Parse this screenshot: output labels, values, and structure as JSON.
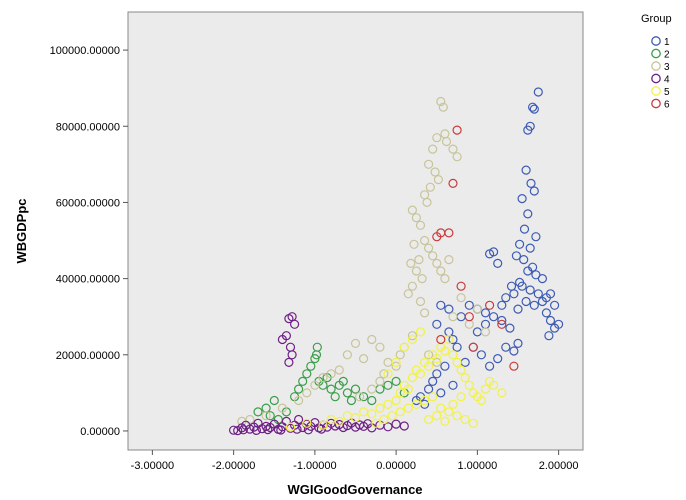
{
  "chart_data": {
    "type": "scatter",
    "xlabel": "WGIGoodGovernance",
    "ylabel": "WBGDPpc",
    "xlim": [
      -3.3,
      2.3
    ],
    "ylim": [
      -5000,
      110000
    ],
    "x_ticks": [
      {
        "value": -3,
        "label": "-3.00000"
      },
      {
        "value": -2,
        "label": "-2.00000"
      },
      {
        "value": -1,
        "label": "-1.00000"
      },
      {
        "value": 0,
        "label": "0.00000"
      },
      {
        "value": 1,
        "label": "1.00000"
      },
      {
        "value": 2,
        "label": "2.00000"
      }
    ],
    "y_ticks": [
      {
        "value": 0,
        "label": "0.00000"
      },
      {
        "value": 20000,
        "label": "20000.00000"
      },
      {
        "value": 40000,
        "label": "40000.00000"
      },
      {
        "value": 60000,
        "label": "60000.00000"
      },
      {
        "value": 80000,
        "label": "80000.00000"
      },
      {
        "value": 100000,
        "label": "100000.00000"
      }
    ],
    "grid": false,
    "legend": {
      "title": "Group",
      "position": "top-right"
    },
    "series": [
      {
        "name": "1",
        "color": "#3d5bb5",
        "points": [
          [
            1.75,
            89000
          ],
          [
            1.68,
            85000
          ],
          [
            1.7,
            84500
          ],
          [
            1.62,
            79000
          ],
          [
            1.65,
            80000
          ],
          [
            1.6,
            68500
          ],
          [
            1.66,
            65000
          ],
          [
            1.55,
            61000
          ],
          [
            1.7,
            63000
          ],
          [
            1.62,
            57000
          ],
          [
            1.58,
            53000
          ],
          [
            1.72,
            51000
          ],
          [
            1.52,
            49000
          ],
          [
            1.65,
            48000
          ],
          [
            1.48,
            46000
          ],
          [
            1.57,
            45000
          ],
          [
            1.68,
            43000
          ],
          [
            1.2,
            47000
          ],
          [
            1.15,
            46500
          ],
          [
            1.25,
            44000
          ],
          [
            0.55,
            33000
          ],
          [
            0.65,
            32000
          ],
          [
            0.9,
            33000
          ],
          [
            1.0,
            32000
          ],
          [
            0.8,
            30000
          ],
          [
            1.1,
            28000
          ],
          [
            1.3,
            29000
          ],
          [
            1.4,
            27000
          ],
          [
            1.85,
            31000
          ],
          [
            1.9,
            29000
          ],
          [
            1.95,
            27000
          ],
          [
            2.0,
            28000
          ],
          [
            1.88,
            25000
          ],
          [
            0.7,
            24000
          ],
          [
            0.75,
            22000
          ],
          [
            0.95,
            22000
          ],
          [
            1.05,
            20000
          ],
          [
            0.85,
            18000
          ],
          [
            0.6,
            17000
          ],
          [
            0.5,
            15000
          ],
          [
            0.45,
            13000
          ],
          [
            0.4,
            11000
          ],
          [
            0.55,
            10000
          ],
          [
            0.7,
            12000
          ],
          [
            0.3,
            9000
          ],
          [
            0.25,
            8000
          ],
          [
            0.35,
            7000
          ],
          [
            1.5,
            23000
          ],
          [
            1.35,
            22000
          ],
          [
            1.45,
            21000
          ],
          [
            1.25,
            19000
          ],
          [
            1.15,
            17000
          ],
          [
            0.65,
            26000
          ],
          [
            0.5,
            28000
          ],
          [
            1.55,
            38000
          ],
          [
            1.65,
            37000
          ],
          [
            1.75,
            36000
          ],
          [
            1.85,
            35000
          ],
          [
            1.6,
            34000
          ],
          [
            1.7,
            33000
          ],
          [
            1.8,
            34000
          ],
          [
            1.5,
            32000
          ],
          [
            1.45,
            36000
          ],
          [
            1.35,
            35000
          ],
          [
            1.9,
            36000
          ],
          [
            1.95,
            33000
          ],
          [
            1.8,
            40000
          ],
          [
            1.72,
            41000
          ],
          [
            1.62,
            42000
          ],
          [
            1.52,
            39000
          ],
          [
            1.42,
            38000
          ],
          [
            1.3,
            33000
          ],
          [
            1.2,
            30000
          ],
          [
            1.1,
            31000
          ],
          [
            1.0,
            26000
          ]
        ]
      },
      {
        "name": "2",
        "color": "#3a9e4a",
        "points": [
          [
            -1.7,
            5000
          ],
          [
            -1.6,
            6000
          ],
          [
            -1.55,
            4000
          ],
          [
            -1.5,
            8000
          ],
          [
            -1.45,
            3000
          ],
          [
            -1.35,
            5000
          ],
          [
            -1.2,
            11000
          ],
          [
            -1.1,
            15000
          ],
          [
            -1.05,
            17000
          ],
          [
            -1.0,
            19000
          ],
          [
            -0.98,
            20000
          ],
          [
            -0.97,
            22000
          ],
          [
            -0.95,
            13000
          ],
          [
            -0.9,
            12000
          ],
          [
            -0.8,
            11000
          ],
          [
            -0.7,
            12000
          ],
          [
            -0.6,
            10000
          ],
          [
            -0.5,
            11000
          ],
          [
            -0.4,
            9000
          ],
          [
            -0.3,
            8000
          ],
          [
            -0.2,
            11000
          ],
          [
            -0.1,
            12000
          ],
          [
            0.0,
            13000
          ],
          [
            0.1,
            10000
          ],
          [
            -1.15,
            13000
          ],
          [
            -1.25,
            9000
          ],
          [
            -0.85,
            14000
          ],
          [
            -0.75,
            9000
          ],
          [
            -0.65,
            13000
          ],
          [
            -0.55,
            8000
          ]
        ]
      },
      {
        "name": "3",
        "color": "#c8c49a",
        "points": [
          [
            0.2,
            58000
          ],
          [
            0.25,
            56000
          ],
          [
            0.35,
            62000
          ],
          [
            0.4,
            70000
          ],
          [
            0.45,
            74000
          ],
          [
            0.5,
            77000
          ],
          [
            0.55,
            86500
          ],
          [
            0.58,
            85000
          ],
          [
            0.6,
            78000
          ],
          [
            0.62,
            76000
          ],
          [
            0.7,
            74000
          ],
          [
            0.75,
            72000
          ],
          [
            0.48,
            68000
          ],
          [
            0.52,
            66000
          ],
          [
            0.42,
            64000
          ],
          [
            0.38,
            60000
          ],
          [
            0.3,
            54000
          ],
          [
            0.35,
            50000
          ],
          [
            0.4,
            48000
          ],
          [
            0.45,
            46000
          ],
          [
            0.5,
            44000
          ],
          [
            0.28,
            45000
          ],
          [
            0.22,
            49000
          ],
          [
            0.18,
            44000
          ],
          [
            0.25,
            42000
          ],
          [
            0.32,
            40000
          ],
          [
            0.2,
            38000
          ],
          [
            0.15,
            36000
          ],
          [
            0.55,
            42000
          ],
          [
            0.6,
            40000
          ],
          [
            0.65,
            45000
          ],
          [
            0.3,
            34000
          ],
          [
            0.35,
            31000
          ],
          [
            -0.3,
            24000
          ],
          [
            -0.2,
            22000
          ],
          [
            -0.5,
            23000
          ],
          [
            -0.6,
            20000
          ],
          [
            -0.4,
            19000
          ],
          [
            -0.1,
            18000
          ],
          [
            0.0,
            17000
          ],
          [
            -0.7,
            16000
          ],
          [
            -0.8,
            15000
          ],
          [
            -0.9,
            14000
          ],
          [
            -1.0,
            12000
          ],
          [
            -1.1,
            10000
          ],
          [
            -1.2,
            8000
          ],
          [
            -1.4,
            6000
          ],
          [
            -1.6,
            4000
          ],
          [
            -1.8,
            3000
          ],
          [
            -1.9,
            2500
          ],
          [
            -0.2,
            13000
          ],
          [
            -0.3,
            11000
          ],
          [
            -0.45,
            9000
          ],
          [
            -0.15,
            15000
          ],
          [
            0.05,
            20000
          ],
          [
            0.1,
            22000
          ],
          [
            0.2,
            25000
          ],
          [
            0.4,
            20000
          ],
          [
            0.5,
            18000
          ],
          [
            0.7,
            30000
          ],
          [
            0.8,
            35000
          ],
          [
            0.9,
            28000
          ],
          [
            1.0,
            32000
          ],
          [
            1.1,
            26000
          ]
        ]
      },
      {
        "name": "4",
        "color": "#6e1f86",
        "points": [
          [
            -2.0,
            200
          ],
          [
            -1.9,
            800
          ],
          [
            -1.85,
            1500
          ],
          [
            -1.8,
            500
          ],
          [
            -1.75,
            1000
          ],
          [
            -1.7,
            2000
          ],
          [
            -1.65,
            600
          ],
          [
            -1.6,
            1200
          ],
          [
            -1.55,
            900
          ],
          [
            -1.5,
            1800
          ],
          [
            -1.45,
            400
          ],
          [
            -1.4,
            1100
          ],
          [
            -1.35,
            2500
          ],
          [
            -1.3,
            700
          ],
          [
            -1.25,
            1500
          ],
          [
            -1.2,
            3000
          ],
          [
            -1.15,
            900
          ],
          [
            -1.1,
            1800
          ],
          [
            -1.05,
            1200
          ],
          [
            -1.0,
            2200
          ],
          [
            -0.95,
            800
          ],
          [
            -0.9,
            1500
          ],
          [
            -0.85,
            1000
          ],
          [
            -0.8,
            2000
          ],
          [
            -0.75,
            1300
          ],
          [
            -0.7,
            1700
          ],
          [
            -0.65,
            900
          ],
          [
            -0.6,
            1400
          ],
          [
            -0.55,
            2100
          ],
          [
            -0.5,
            1000
          ],
          [
            -0.45,
            1600
          ],
          [
            -0.4,
            1200
          ],
          [
            -0.35,
            1900
          ],
          [
            -0.3,
            800
          ],
          [
            -0.2,
            1500
          ],
          [
            -0.1,
            1100
          ],
          [
            0.0,
            1800
          ],
          [
            0.1,
            1300
          ],
          [
            -1.32,
            29500
          ],
          [
            -1.28,
            30000
          ],
          [
            -1.25,
            28000
          ],
          [
            -1.35,
            25000
          ],
          [
            -1.3,
            22000
          ],
          [
            -1.28,
            20000
          ],
          [
            -1.4,
            24000
          ],
          [
            -1.32,
            18000
          ],
          [
            -1.95,
            100
          ],
          [
            -1.88,
            300
          ],
          [
            -1.72,
            150
          ],
          [
            -1.58,
            350
          ],
          [
            -1.42,
            250
          ],
          [
            -1.22,
            450
          ],
          [
            -1.08,
            300
          ],
          [
            -0.92,
            500
          ]
        ]
      },
      {
        "name": "5",
        "color": "#f2f246",
        "points": [
          [
            -1.3,
            1000
          ],
          [
            -1.1,
            2000
          ],
          [
            -0.9,
            1500
          ],
          [
            -0.8,
            3000
          ],
          [
            -0.7,
            2500
          ],
          [
            -0.6,
            4000
          ],
          [
            -0.5,
            3500
          ],
          [
            -0.4,
            5000
          ],
          [
            -0.3,
            4500
          ],
          [
            -0.2,
            6000
          ],
          [
            -0.1,
            7000
          ],
          [
            0.0,
            8000
          ],
          [
            0.05,
            10000
          ],
          [
            0.1,
            12000
          ],
          [
            0.15,
            11000
          ],
          [
            0.2,
            14000
          ],
          [
            0.25,
            16000
          ],
          [
            0.3,
            15000
          ],
          [
            0.35,
            18000
          ],
          [
            0.4,
            17000
          ],
          [
            0.45,
            20000
          ],
          [
            0.5,
            19000
          ],
          [
            0.55,
            22000
          ],
          [
            0.6,
            21000
          ],
          [
            0.65,
            24000
          ],
          [
            0.7,
            20000
          ],
          [
            0.75,
            18000
          ],
          [
            0.8,
            16000
          ],
          [
            0.85,
            14000
          ],
          [
            0.9,
            12000
          ],
          [
            0.95,
            10000
          ],
          [
            1.0,
            9000
          ],
          [
            1.05,
            8000
          ],
          [
            1.1,
            11000
          ],
          [
            1.15,
            13000
          ],
          [
            1.2,
            12000
          ],
          [
            1.3,
            10000
          ],
          [
            -0.25,
            2000
          ],
          [
            -0.15,
            3000
          ],
          [
            -0.05,
            4000
          ],
          [
            0.05,
            5000
          ],
          [
            0.15,
            6000
          ],
          [
            0.25,
            7000
          ],
          [
            0.35,
            8000
          ],
          [
            0.45,
            9000
          ],
          [
            0.55,
            6000
          ],
          [
            0.65,
            5000
          ],
          [
            0.75,
            4000
          ],
          [
            0.85,
            3000
          ],
          [
            0.95,
            2000
          ],
          [
            0.2,
            24000
          ],
          [
            0.3,
            26000
          ],
          [
            0.1,
            22000
          ],
          [
            0.0,
            18000
          ],
          [
            -0.1,
            15000
          ],
          [
            0.4,
            3000
          ],
          [
            0.5,
            4000
          ],
          [
            0.6,
            2500
          ],
          [
            0.7,
            7000
          ],
          [
            0.8,
            9000
          ]
        ]
      },
      {
        "name": "6",
        "color": "#c93b3b",
        "points": [
          [
            0.75,
            79000
          ],
          [
            0.7,
            65000
          ],
          [
            0.55,
            52000
          ],
          [
            0.65,
            52000
          ],
          [
            0.5,
            51000
          ],
          [
            0.8,
            38000
          ],
          [
            0.9,
            30000
          ],
          [
            0.55,
            24000
          ],
          [
            0.95,
            22000
          ],
          [
            1.15,
            33000
          ],
          [
            1.3,
            28000
          ],
          [
            1.45,
            17000
          ]
        ]
      }
    ]
  }
}
